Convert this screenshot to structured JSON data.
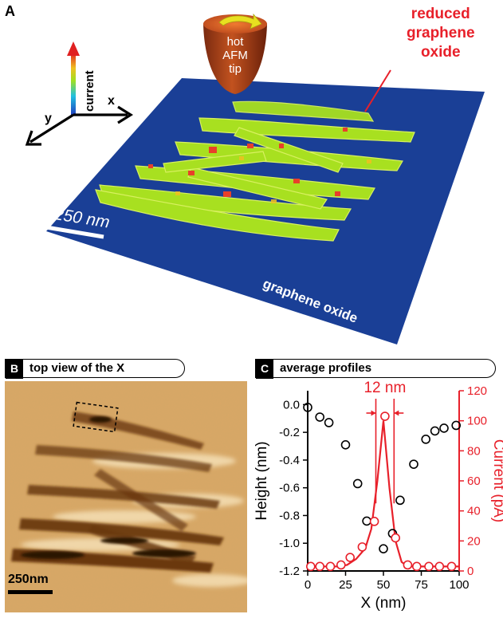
{
  "panel_a": {
    "letter": "A",
    "tip_lines": [
      "hot",
      "AFM",
      "tip"
    ],
    "annotation_lines": [
      "reduced",
      "graphene",
      "oxide"
    ],
    "axis_current": "current",
    "axis_x": "x",
    "axis_y": "y",
    "scale_bar": "250 nm",
    "substrate_label": "graphene oxide"
  },
  "panel_b": {
    "letter": "B",
    "title": "top view of the X",
    "scale_bar": "250nm"
  },
  "panel_c": {
    "letter": "C",
    "title": "average profiles",
    "annotation": "12 nm"
  },
  "colors": {
    "substrate_blue": "#1a3f96",
    "stripe_green": "#a8e020",
    "current_red": "#e8202a",
    "afm_sepia": "#d9a765"
  },
  "chart_data": {
    "type": "scatter",
    "title": "average profiles",
    "xlabel": "X (nm)",
    "ylabel_left": "Height (nm)",
    "ylabel_right": "Current (pA)",
    "xlim": [
      0,
      100
    ],
    "ylim_left": [
      -1.2,
      0.1
    ],
    "ylim_right": [
      0,
      120
    ],
    "x_ticks": [
      "0",
      "25",
      "50",
      "75",
      "100"
    ],
    "y_left_ticks": [
      "0.0",
      "-0.2",
      "-0.4",
      "-0.6",
      "-0.8",
      "-1.0",
      "-1.2"
    ],
    "y_right_ticks": [
      "0",
      "20",
      "40",
      "60",
      "80",
      "100",
      "120"
    ],
    "series": [
      {
        "axis": "left",
        "color": "#000000",
        "x": [
          0,
          8,
          14,
          25,
          33,
          39,
          50,
          56,
          61,
          70,
          78,
          84,
          90,
          98
        ],
        "y": [
          -0.02,
          -0.09,
          -0.13,
          -0.29,
          -0.57,
          -0.84,
          -1.04,
          -0.93,
          -0.69,
          -0.43,
          -0.25,
          -0.19,
          -0.17,
          -0.15
        ]
      },
      {
        "axis": "right",
        "color": "#e8202a",
        "x": [
          2,
          8,
          15,
          22,
          28,
          36,
          44,
          51,
          58,
          66,
          72,
          80,
          87,
          95
        ],
        "y": [
          3,
          3,
          3,
          4,
          9,
          16,
          33,
          103,
          22,
          4,
          3,
          3,
          3,
          3
        ]
      }
    ],
    "line_series": {
      "axis": "right",
      "color": "#e8202a",
      "x": [
        0,
        10,
        20,
        26,
        32,
        38,
        42,
        46,
        50,
        54,
        58,
        62,
        66,
        70,
        80,
        100
      ],
      "y": [
        3,
        3,
        3,
        4,
        8,
        15,
        28,
        60,
        100,
        55,
        20,
        6,
        3,
        3,
        3,
        3
      ]
    },
    "annotation": {
      "text": "12 nm",
      "x_from": 45,
      "x_to": 57
    }
  }
}
